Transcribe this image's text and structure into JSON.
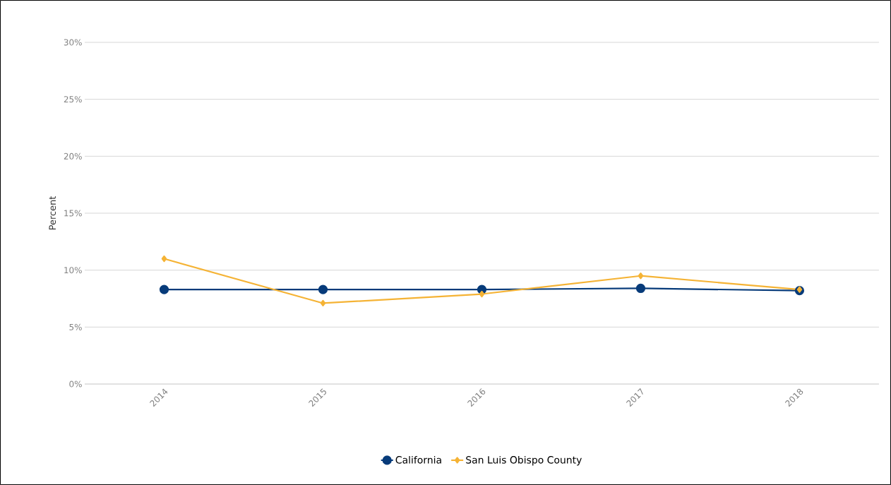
{
  "chart_data": {
    "type": "line",
    "ylabel": "Percent",
    "categories": [
      "2014",
      "2015",
      "2016",
      "2017",
      "2018"
    ],
    "series": [
      {
        "name": "California",
        "color": "#073b7a",
        "marker": "circle",
        "values": [
          8.3,
          8.3,
          8.3,
          8.4,
          8.2
        ]
      },
      {
        "name": "San Luis Obispo County",
        "color": "#f5b335",
        "marker": "diamond",
        "values": [
          11.0,
          7.1,
          7.9,
          9.5,
          8.3
        ]
      }
    ],
    "ylim": [
      0,
      30
    ],
    "yticks": [
      {
        "value": 0,
        "label": "0%"
      },
      {
        "value": 5,
        "label": "5%"
      },
      {
        "value": 10,
        "label": "10%"
      },
      {
        "value": 15,
        "label": "15%"
      },
      {
        "value": 20,
        "label": "20%"
      },
      {
        "value": 25,
        "label": "25%"
      },
      {
        "value": 30,
        "label": "30%"
      }
    ],
    "grid": "y",
    "legend": "bottom",
    "line_style": "solid"
  }
}
